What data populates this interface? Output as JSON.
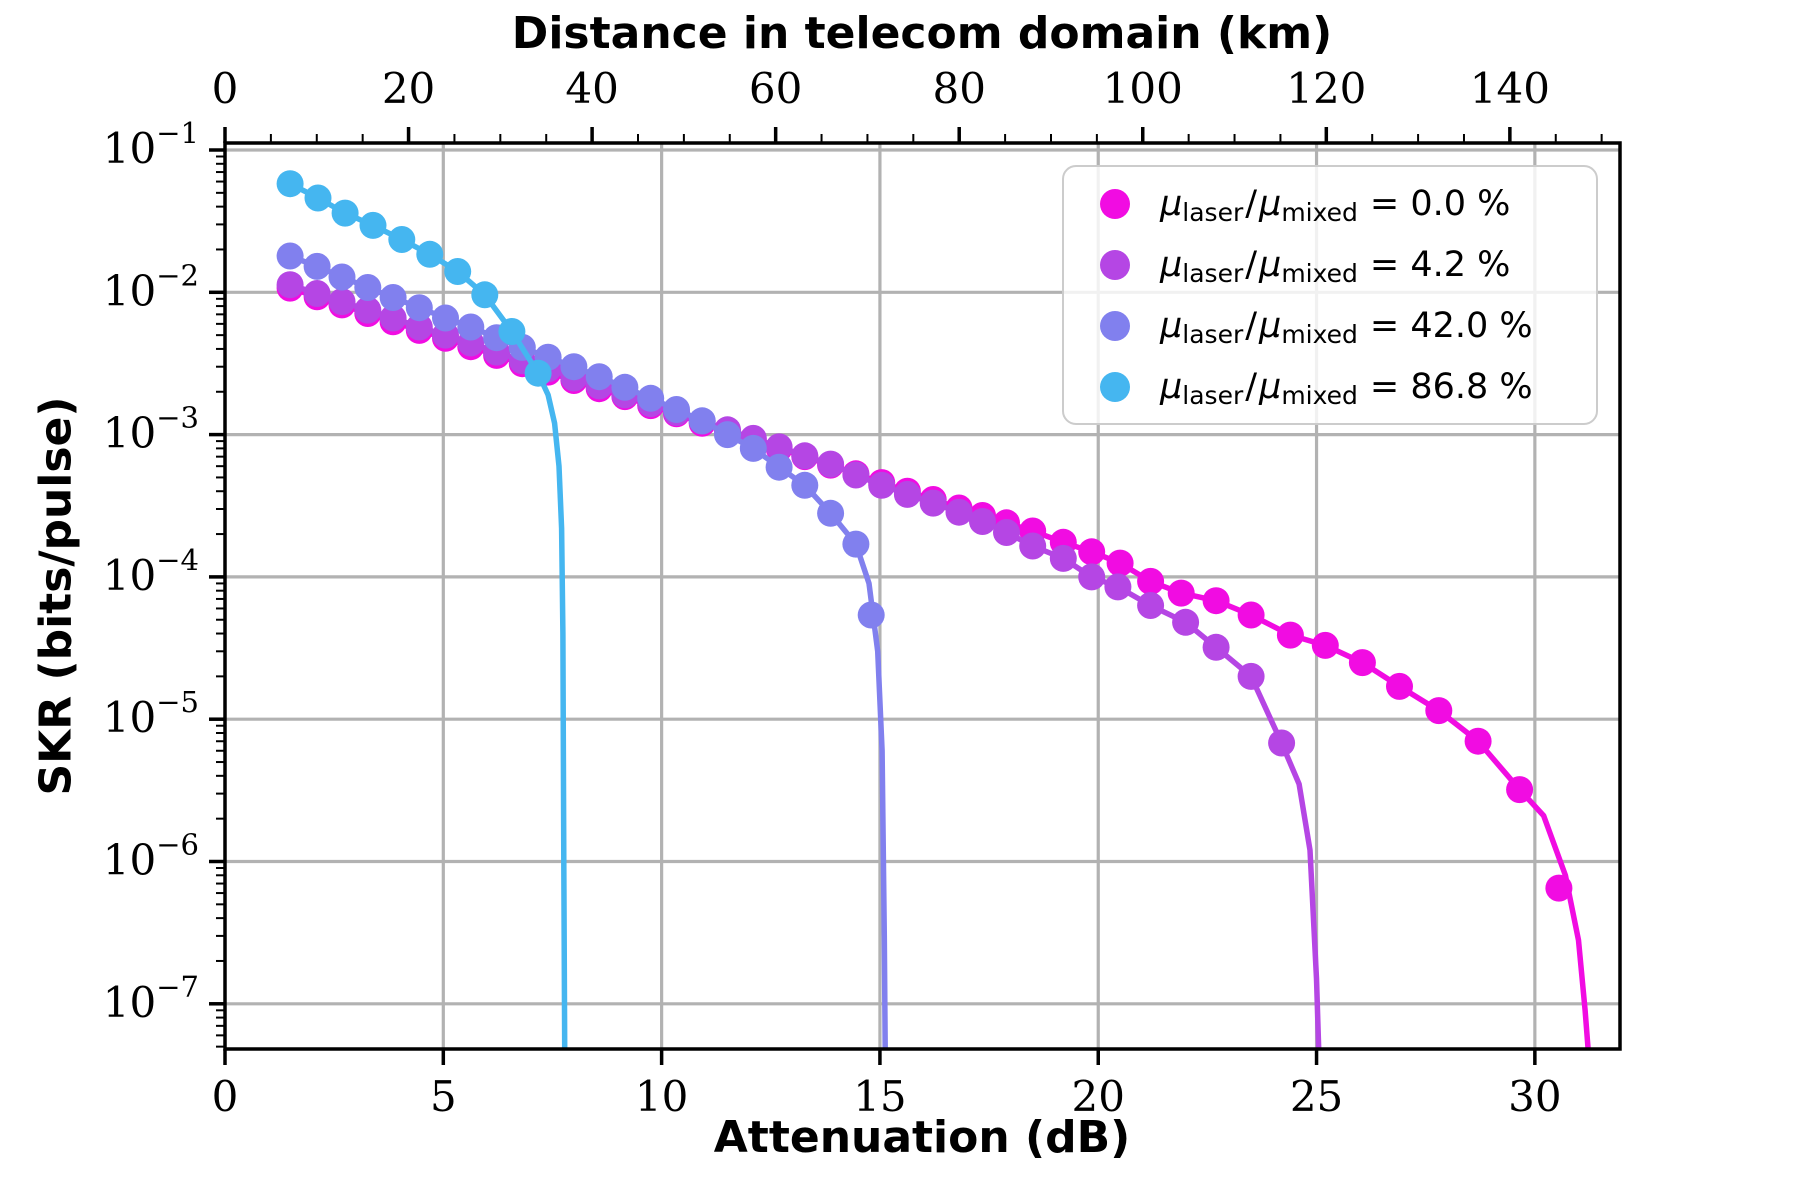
{
  "figure": {
    "background": "#ffffff"
  },
  "axes": {
    "x_bottom": {
      "label": "Attenuation (dB)",
      "ticks": [
        0,
        5,
        10,
        15,
        20,
        25,
        30
      ],
      "range_db": [
        0,
        31.95
      ]
    },
    "x_top": {
      "label": "Distance in telecom domain (km)",
      "ticks": [
        0,
        20,
        40,
        60,
        80,
        100,
        120,
        140
      ],
      "range_km": [
        0,
        152
      ],
      "db_per_km": 0.21
    },
    "y": {
      "label": "SKR (bits/pulse)",
      "scale": "log",
      "tick_exponents": [
        "−1",
        "−2",
        "−3",
        "−4",
        "−5",
        "−6",
        "−7"
      ],
      "tick_base": "10",
      "range": [
        4.8e-08,
        0.112
      ]
    }
  },
  "colors": {
    "grid": "#b2b2b2",
    "frame": "#000000",
    "magenta": "#f10ce2",
    "purple": "#b546e4",
    "periwinkle": "#8180ee",
    "cyan": "#45b6f0"
  },
  "legend": {
    "position": "upper-right",
    "entries": [
      {
        "color": "#f10ce2",
        "mu1": "μ",
        "sub1": "laser",
        "slash": "/",
        "mu2": "μ",
        "sub2": "mixed",
        "value": "= 0.0 %"
      },
      {
        "color": "#b546e4",
        "mu1": "μ",
        "sub1": "laser",
        "slash": "/",
        "mu2": "μ",
        "sub2": "mixed",
        "value": "= 4.2 %"
      },
      {
        "color": "#8180ee",
        "mu1": "μ",
        "sub1": "laser",
        "slash": "/",
        "mu2": "μ",
        "sub2": "mixed",
        "value": "= 42.0 %"
      },
      {
        "color": "#45b6f0",
        "mu1": "μ",
        "sub1": "laser",
        "slash": "/",
        "mu2": "μ",
        "sub2": "mixed",
        "value": "= 86.8 %"
      }
    ]
  },
  "chart_data": {
    "type": "scatter",
    "title": "",
    "xlabel": "Attenuation (dB)",
    "x2label": "Distance in telecom domain (km)",
    "ylabel": "SKR (bits/pulse)",
    "xlim": [
      0,
      31.95
    ],
    "x2lim_km": [
      0,
      152
    ],
    "ylim": [
      4.8e-08,
      0.112
    ],
    "grid": true,
    "legend_position": "upper right",
    "series": [
      {
        "name": "mu_laser/mu_mixed = 0.0 %",
        "ratio_percent": 0.0,
        "color": "#f10ce2",
        "cutoff_db": 31.25,
        "points": [
          [
            1.49,
            0.0107
          ],
          [
            2.11,
            0.0093
          ],
          [
            2.68,
            0.00815
          ],
          [
            3.27,
            0.0071
          ],
          [
            3.85,
            0.0062
          ],
          [
            4.45,
            0.0054
          ],
          [
            5.05,
            0.00475
          ],
          [
            5.63,
            0.00415
          ],
          [
            6.22,
            0.0036
          ],
          [
            6.81,
            0.00315
          ],
          [
            7.4,
            0.00275
          ],
          [
            7.99,
            0.0024
          ],
          [
            8.57,
            0.0021
          ],
          [
            9.16,
            0.00185
          ],
          [
            9.75,
            0.0016
          ],
          [
            10.34,
            0.0014
          ],
          [
            10.93,
            0.0012
          ],
          [
            11.51,
            0.00105
          ],
          [
            12.1,
            0.00092
          ],
          [
            12.69,
            0.0008
          ],
          [
            13.28,
            0.0007
          ],
          [
            13.87,
            0.00061
          ],
          [
            14.45,
            0.00053
          ],
          [
            15.04,
            0.00046
          ],
          [
            15.63,
            0.0004
          ],
          [
            16.22,
            0.00035
          ],
          [
            16.81,
            0.000305
          ],
          [
            17.35,
            0.00027
          ],
          [
            17.9,
            0.00024
          ],
          [
            18.5,
            0.00021
          ],
          [
            19.2,
            0.000175
          ],
          [
            19.85,
            0.00015
          ],
          [
            20.5,
            0.000125
          ],
          [
            21.2,
            9.3e-05
          ],
          [
            21.9,
            7.7e-05
          ],
          [
            22.7,
            6.8e-05
          ],
          [
            23.5,
            5.4e-05
          ],
          [
            24.4,
            3.9e-05
          ],
          [
            25.2,
            3.3e-05
          ],
          [
            26.05,
            2.5e-05
          ],
          [
            26.9,
            1.7e-05
          ],
          [
            27.8,
            1.15e-05
          ],
          [
            28.7,
            7e-06
          ],
          [
            29.65,
            3.2e-06
          ],
          [
            30.55,
            6.5e-07
          ]
        ],
        "line_omit_last": 1,
        "tail": [
          [
            30.2,
            2.1e-06
          ],
          [
            30.7,
            8e-07
          ],
          [
            31.0,
            2.8e-07
          ],
          [
            31.15,
            9e-08
          ],
          [
            31.22,
            4.6e-08
          ]
        ]
      },
      {
        "name": "mu_laser/mu_mixed = 4.2 %",
        "ratio_percent": 4.2,
        "color": "#b546e4",
        "cutoff_db": 25.05,
        "points": [
          [
            1.49,
            0.0113
          ],
          [
            2.11,
            0.0098
          ],
          [
            2.68,
            0.0086
          ],
          [
            3.27,
            0.0075
          ],
          [
            3.85,
            0.0066
          ],
          [
            4.45,
            0.0057
          ],
          [
            5.05,
            0.005
          ],
          [
            5.63,
            0.0044
          ],
          [
            6.22,
            0.0038
          ],
          [
            6.81,
            0.0033
          ],
          [
            7.4,
            0.0029
          ],
          [
            7.99,
            0.0025
          ],
          [
            8.57,
            0.0022
          ],
          [
            9.16,
            0.0019
          ],
          [
            9.75,
            0.00165
          ],
          [
            10.34,
            0.00143
          ],
          [
            10.93,
            0.00124
          ],
          [
            11.51,
            0.00108
          ],
          [
            12.1,
            0.00094
          ],
          [
            12.69,
            0.00082
          ],
          [
            13.28,
            0.00071
          ],
          [
            13.87,
            0.00062
          ],
          [
            14.45,
            0.00052
          ],
          [
            15.04,
            0.00044
          ],
          [
            15.63,
            0.00038
          ],
          [
            16.22,
            0.00033
          ],
          [
            16.81,
            0.000285
          ],
          [
            17.35,
            0.000245
          ],
          [
            17.9,
            0.000205
          ],
          [
            18.5,
            0.000165
          ],
          [
            19.2,
            0.000135
          ],
          [
            19.85,
            0.0001
          ],
          [
            20.45,
            8.5e-05
          ],
          [
            21.2,
            6.3e-05
          ],
          [
            22.0,
            4.8e-05
          ],
          [
            22.7,
            3.2e-05
          ],
          [
            23.5,
            2e-05
          ],
          [
            24.2,
            6.8e-06
          ]
        ],
        "line_omit_last": 0,
        "tail": [
          [
            24.6,
            3.5e-06
          ],
          [
            24.85,
            1.2e-06
          ],
          [
            25.0,
            1.5e-07
          ],
          [
            25.05,
            4.6e-08
          ]
        ]
      },
      {
        "name": "mu_laser/mu_mixed = 42.0 %",
        "ratio_percent": 42.0,
        "color": "#8180ee",
        "cutoff_db": 15.12,
        "points": [
          [
            1.49,
            0.018
          ],
          [
            2.11,
            0.0152
          ],
          [
            2.68,
            0.0128
          ],
          [
            3.27,
            0.0108
          ],
          [
            3.85,
            0.0092
          ],
          [
            4.45,
            0.0078
          ],
          [
            5.05,
            0.0066
          ],
          [
            5.63,
            0.0057
          ],
          [
            6.22,
            0.0048
          ],
          [
            6.81,
            0.0041
          ],
          [
            7.4,
            0.0035
          ],
          [
            7.99,
            0.003
          ],
          [
            8.57,
            0.00255
          ],
          [
            9.16,
            0.00215
          ],
          [
            9.75,
            0.0018
          ],
          [
            10.34,
            0.0015
          ],
          [
            10.93,
            0.00125
          ],
          [
            11.51,
            0.001
          ],
          [
            12.1,
            0.0008
          ],
          [
            12.69,
            0.00059
          ],
          [
            13.28,
            0.00044
          ],
          [
            13.87,
            0.00028
          ],
          [
            14.45,
            0.00017
          ],
          [
            14.8,
            5.4e-05
          ]
        ],
        "line_omit_last": 1,
        "tail": [
          [
            14.75,
            9e-05
          ],
          [
            14.95,
            3e-05
          ],
          [
            15.05,
            6e-06
          ],
          [
            15.1,
            3e-07
          ],
          [
            15.12,
            4.6e-08
          ]
        ]
      },
      {
        "name": "mu_laser/mu_mixed = 86.8 %",
        "ratio_percent": 86.8,
        "color": "#45b6f0",
        "cutoff_db": 7.78,
        "points": [
          [
            1.49,
            0.058
          ],
          [
            2.13,
            0.046
          ],
          [
            2.75,
            0.036
          ],
          [
            3.39,
            0.0295
          ],
          [
            4.05,
            0.0235
          ],
          [
            4.69,
            0.0185
          ],
          [
            5.33,
            0.014
          ],
          [
            5.95,
            0.0096
          ],
          [
            6.57,
            0.0053
          ],
          [
            7.17,
            0.0027
          ]
        ],
        "line_omit_last": 0,
        "tail": [
          [
            7.4,
            0.0019
          ],
          [
            7.55,
            0.0012
          ],
          [
            7.65,
            0.0006
          ],
          [
            7.71,
            0.00022
          ],
          [
            7.74,
            4e-05
          ],
          [
            7.76,
            1e-06
          ],
          [
            7.78,
            4.6e-08
          ]
        ]
      }
    ]
  }
}
